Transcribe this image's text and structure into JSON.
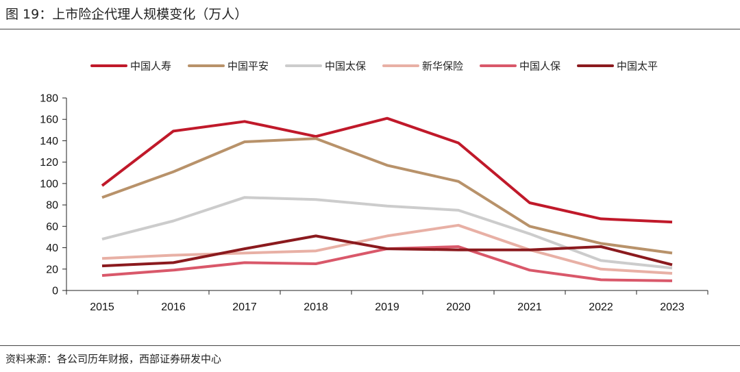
{
  "figure": {
    "title": "图 19：上市险企代理人规模变化（万人）",
    "source": "资料来源：各公司历年财报，西部证券研发中心"
  },
  "chart_data": {
    "type": "line",
    "title": "上市险企代理人规模变化（万人）",
    "xlabel": "",
    "ylabel": "",
    "ylim": [
      0,
      180
    ],
    "yticks": [
      0,
      20,
      40,
      60,
      80,
      100,
      120,
      140,
      160,
      180
    ],
    "categories": [
      "2015",
      "2016",
      "2017",
      "2018",
      "2019",
      "2020",
      "2021",
      "2022",
      "2023"
    ],
    "grid": false,
    "legend_position": "top",
    "series": [
      {
        "name": "中国人寿",
        "color": "#c0192a",
        "values": [
          98,
          149,
          158,
          144,
          161,
          138,
          82,
          67,
          64
        ]
      },
      {
        "name": "中国平安",
        "color": "#b8926a",
        "values": [
          87,
          111,
          139,
          142,
          117,
          102,
          60,
          44,
          35
        ]
      },
      {
        "name": "中国太保",
        "color": "#cccccc",
        "values": [
          48,
          65,
          87,
          85,
          79,
          75,
          53,
          28,
          21
        ]
      },
      {
        "name": "新华保险",
        "color": "#e8b0a5",
        "values": [
          30,
          33,
          35,
          37,
          51,
          61,
          38,
          20,
          16
        ]
      },
      {
        "name": "中国人保",
        "color": "#d9586a",
        "values": [
          14,
          19,
          26,
          25,
          39,
          41,
          19,
          10,
          9
        ]
      },
      {
        "name": "中国太平",
        "color": "#8b1a1e",
        "values": [
          23,
          26,
          39,
          51,
          39,
          38,
          38,
          41,
          24
        ]
      }
    ]
  }
}
